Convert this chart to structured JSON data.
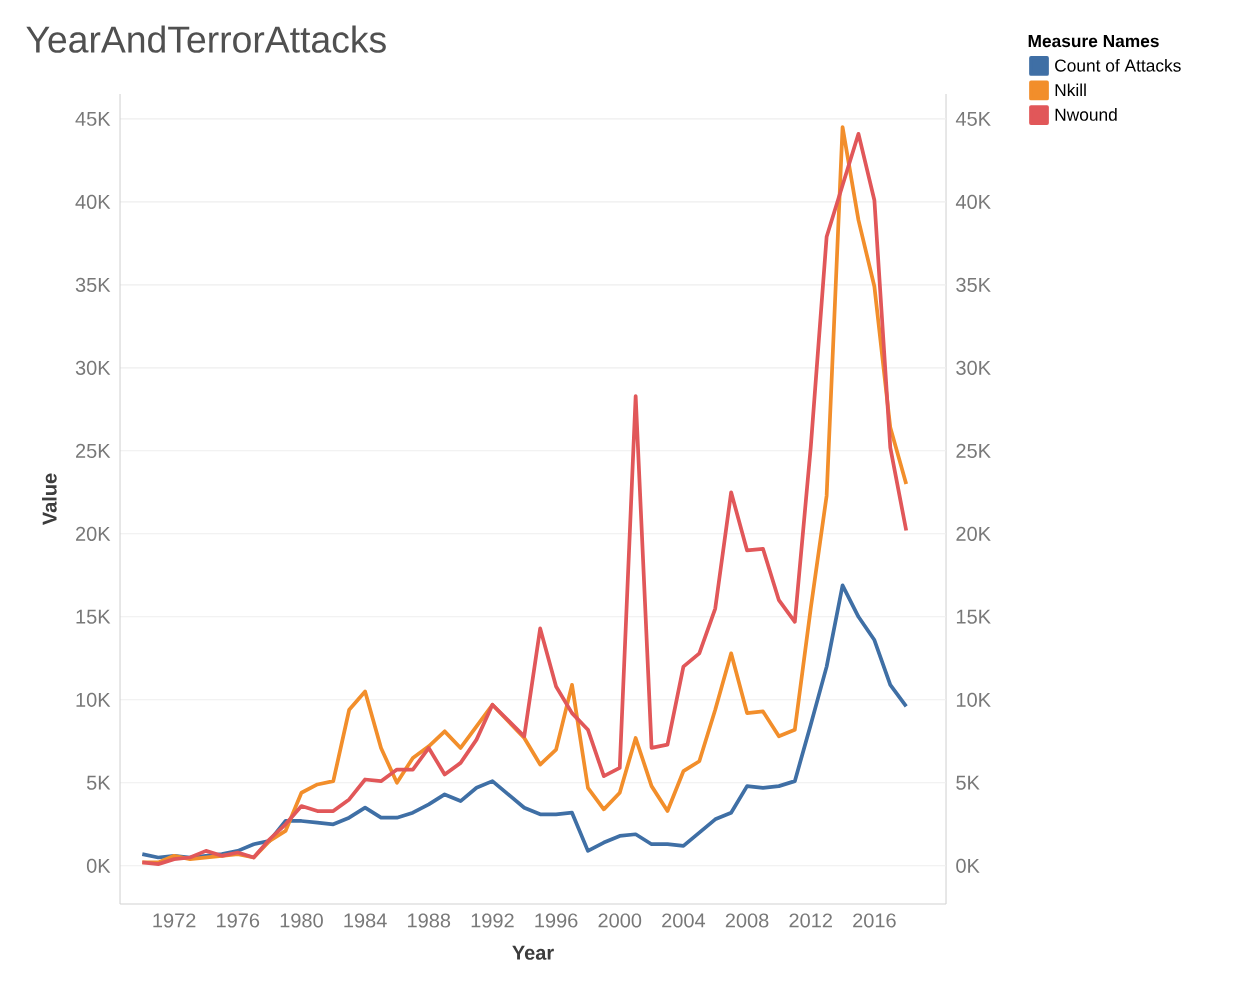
{
  "chart_data": {
    "type": "line",
    "title": "YearAndTerrorAttacks",
    "xlabel": "Year",
    "ylabel": "Value",
    "legend_title": "Measure Names",
    "x": [
      1970,
      1971,
      1972,
      1973,
      1974,
      1975,
      1976,
      1977,
      1978,
      1979,
      1980,
      1981,
      1982,
      1983,
      1984,
      1985,
      1986,
      1987,
      1988,
      1989,
      1990,
      1991,
      1992,
      1994,
      1995,
      1996,
      1997,
      1998,
      1999,
      2000,
      2001,
      2002,
      2003,
      2004,
      2005,
      2006,
      2007,
      2008,
      2009,
      2010,
      2011,
      2012,
      2013,
      2014,
      2015,
      2016,
      2017,
      2018
    ],
    "series": [
      {
        "name": "Count of Attacks",
        "color": "#3f6fa5",
        "values": [
          700,
          500,
          600,
          500,
          600,
          700,
          900,
          1300,
          1500,
          2700,
          2700,
          2600,
          2500,
          2900,
          3500,
          2900,
          2900,
          3200,
          3700,
          4300,
          3900,
          4700,
          5100,
          3500,
          3100,
          3100,
          3200,
          900,
          1400,
          1800,
          1900,
          1300,
          1300,
          1200,
          2000,
          2800,
          3200,
          4800,
          4700,
          4800,
          5100,
          8500,
          12000,
          16900,
          15000,
          13600,
          10900,
          9600
        ]
      },
      {
        "name": "Nkill",
        "color": "#f28e2b",
        "values": [
          200,
          200,
          600,
          400,
          500,
          600,
          700,
          500,
          1500,
          2100,
          4400,
          4900,
          5100,
          9400,
          10500,
          7100,
          5000,
          6500,
          7200,
          8100,
          7100,
          8400,
          9700,
          7700,
          6100,
          7000,
          10900,
          4700,
          3400,
          4400,
          7700,
          4800,
          3300,
          5700,
          6300,
          9400,
          12800,
          9200,
          9300,
          7800,
          8200,
          15500,
          22300,
          44500,
          38900,
          34900,
          26400,
          23000
        ]
      },
      {
        "name": "Nwound",
        "color": "#e15759",
        "values": [
          200,
          100,
          400,
          500,
          900,
          600,
          800,
          500,
          1600,
          2500,
          3600,
          3300,
          3300,
          4000,
          5200,
          5100,
          5800,
          5800,
          7100,
          5500,
          6200,
          7600,
          9700,
          7800,
          14300,
          10800,
          9200,
          8200,
          5400,
          5900,
          28300,
          7100,
          7300,
          12000,
          12800,
          15500,
          22500,
          19000,
          19100,
          16000,
          14700,
          25200,
          37900,
          41000,
          44100,
          40100,
          25200,
          20200
        ]
      }
    ],
    "xlim": [
      1968.6,
      2020.5
    ],
    "xticks": [
      1972,
      1976,
      1980,
      1984,
      1988,
      1992,
      1996,
      2000,
      2004,
      2008,
      2012,
      2016
    ],
    "ylim": [
      -2300,
      46500
    ],
    "yticks": [
      {
        "value": 0,
        "label": "0K"
      },
      {
        "value": 5000,
        "label": "5K"
      },
      {
        "value": 10000,
        "label": "10K"
      },
      {
        "value": 15000,
        "label": "15K"
      },
      {
        "value": 20000,
        "label": "20K"
      },
      {
        "value": 25000,
        "label": "25K"
      },
      {
        "value": 30000,
        "label": "30K"
      },
      {
        "value": 35000,
        "label": "35K"
      },
      {
        "value": 40000,
        "label": "40K"
      },
      {
        "value": 45000,
        "label": "45K"
      }
    ],
    "y2lim": [
      -2300,
      46500
    ],
    "y2ticks": [
      {
        "value": 0,
        "label": "0K"
      },
      {
        "value": 5000,
        "label": "5K"
      },
      {
        "value": 10000,
        "label": "10K"
      },
      {
        "value": 15000,
        "label": "15K"
      },
      {
        "value": 20000,
        "label": "20K"
      },
      {
        "value": 25000,
        "label": "25K"
      },
      {
        "value": 30000,
        "label": "30K"
      },
      {
        "value": 35000,
        "label": "35K"
      },
      {
        "value": 40000,
        "label": "40K"
      },
      {
        "value": 45000,
        "label": "45K"
      }
    ],
    "grid": "y",
    "legend": "top right",
    "marker": "none",
    "line_style": "solid"
  }
}
